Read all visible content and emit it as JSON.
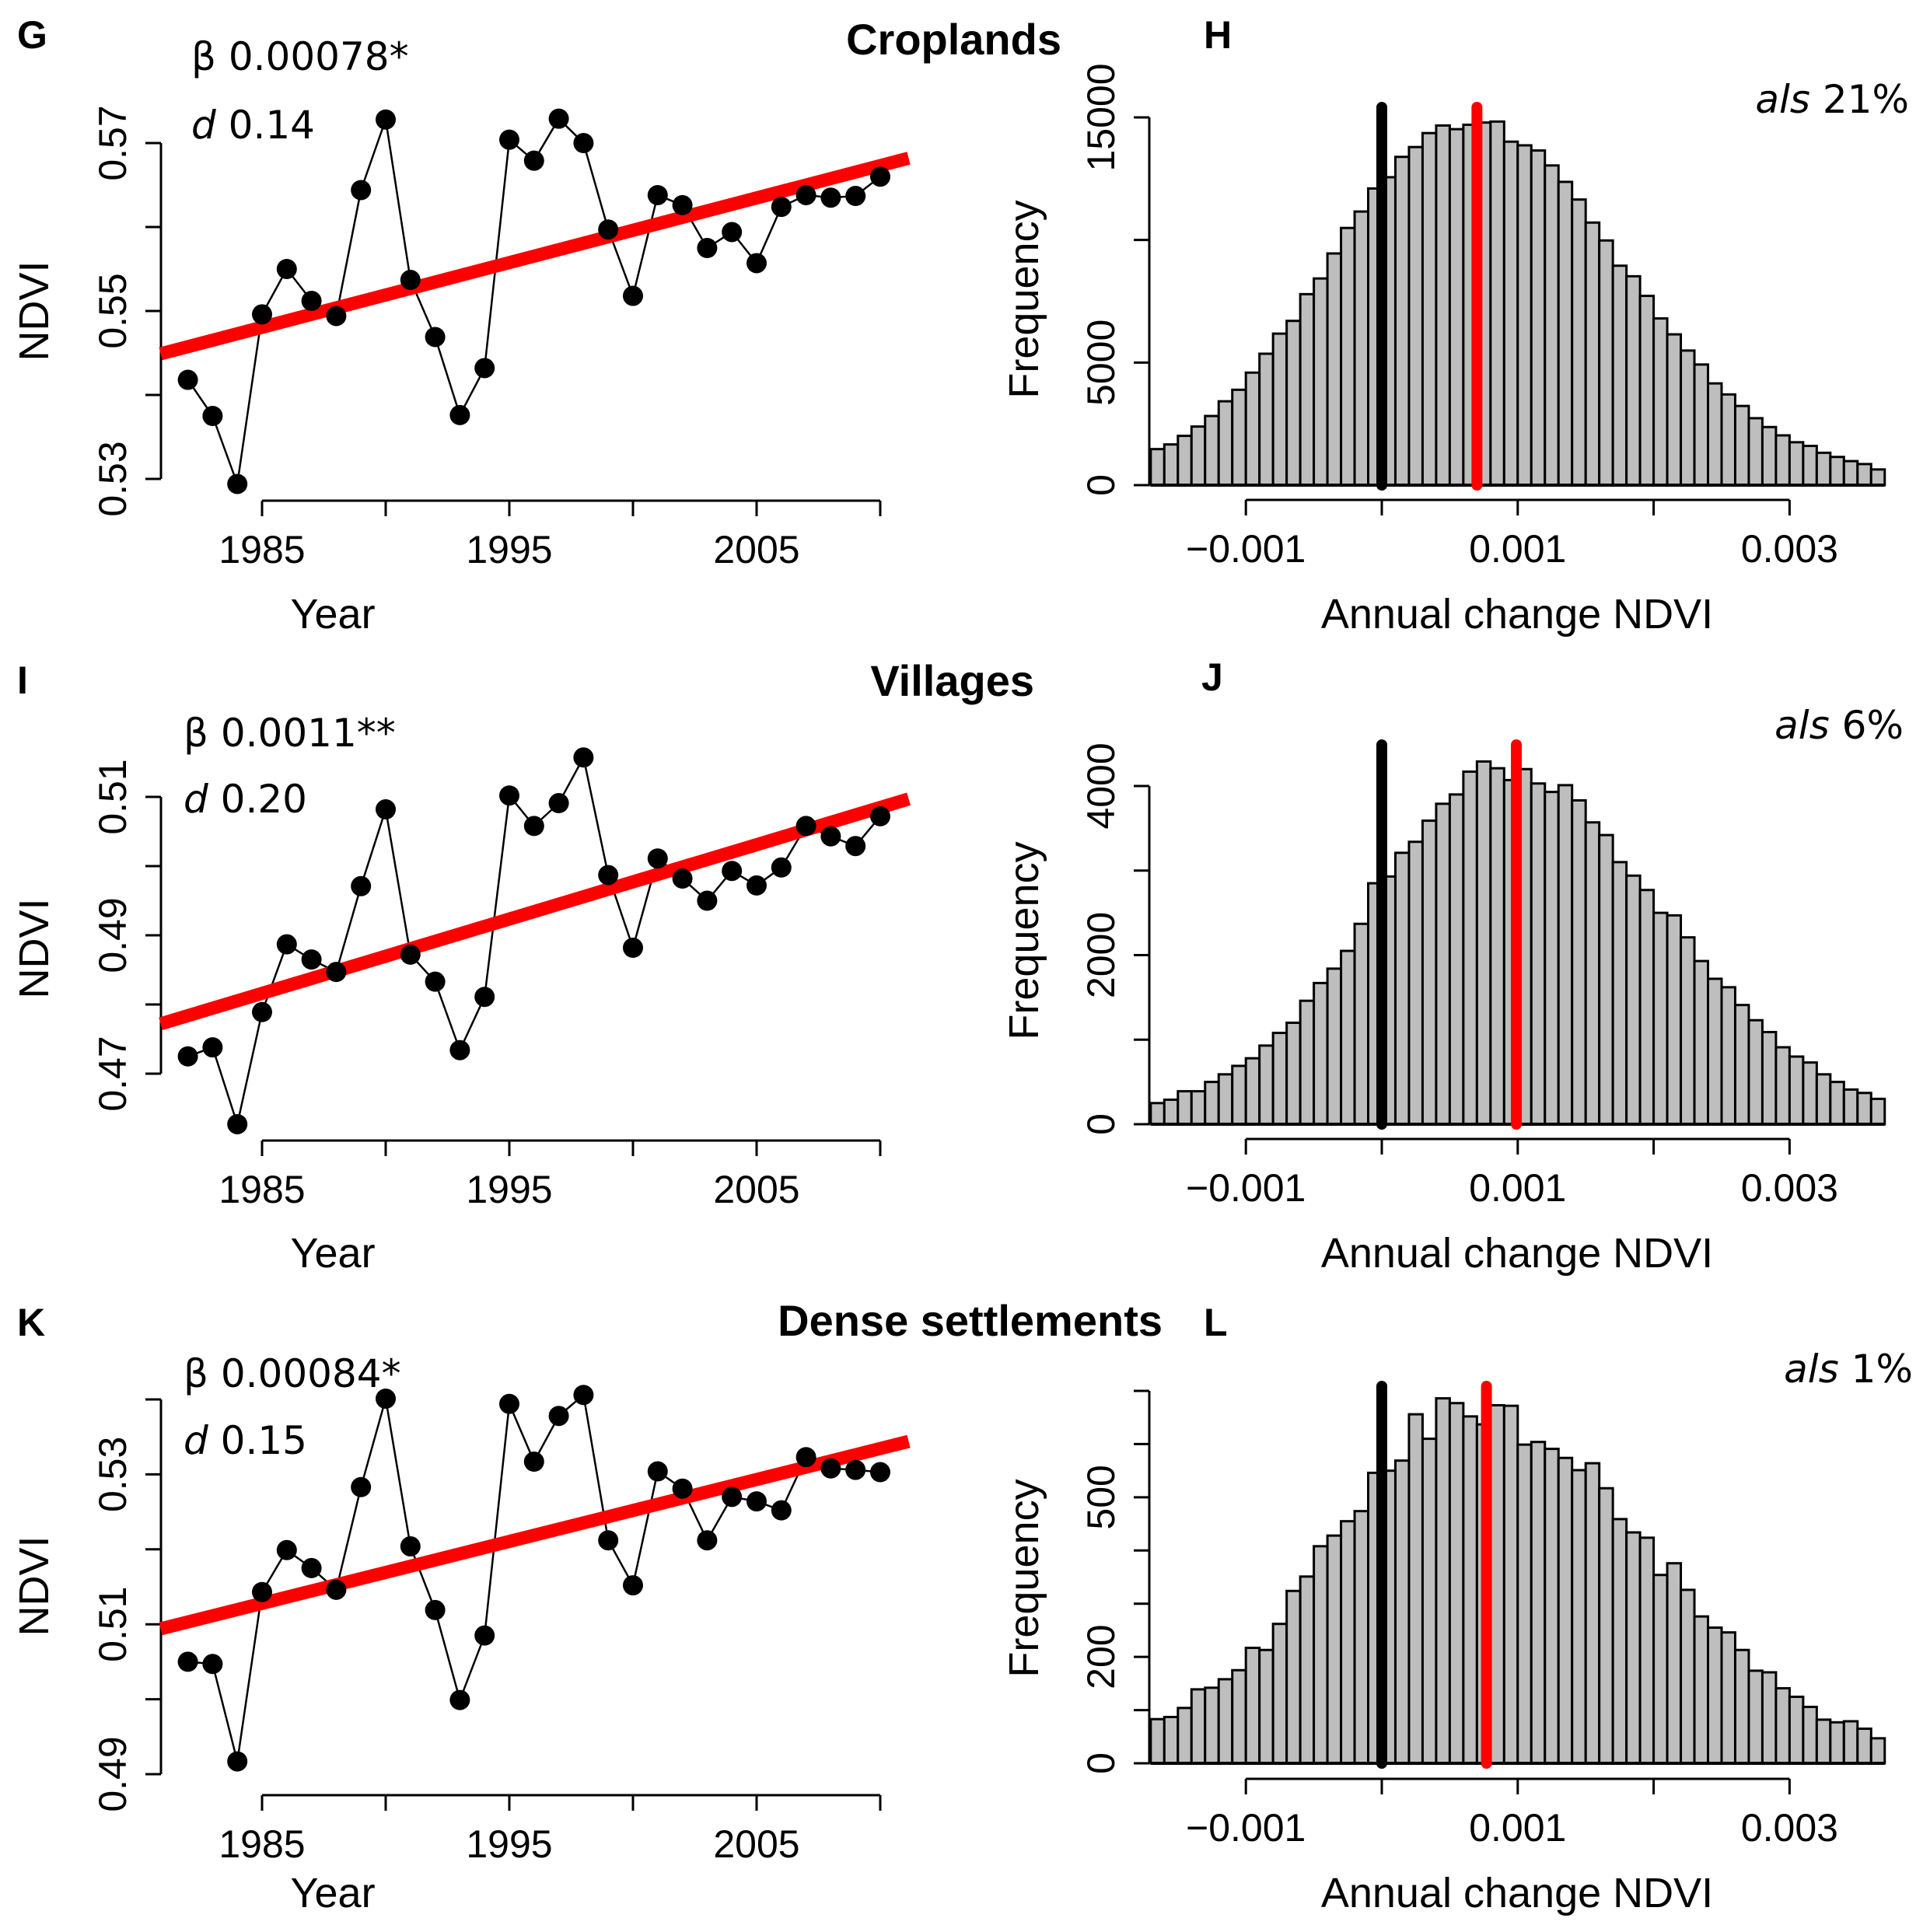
{
  "chart_data": [
    {
      "id": "G",
      "type": "line",
      "panel_label": "G",
      "title": "Croplands",
      "annotation": {
        "beta_symbol": "β",
        "beta": "0.00078*",
        "d_symbol": "d",
        "d": "0.14"
      },
      "xlabel": "Year",
      "ylabel": "NDVI",
      "xticks": [
        1985,
        1990,
        1995,
        2000,
        2005,
        2010
      ],
      "xtick_labels": [
        "1985",
        "1995",
        "2005"
      ],
      "yticks": [
        0.53,
        0.54,
        0.55,
        0.56,
        0.57
      ],
      "ytick_labels": [
        "0.53",
        "0.55",
        "0.57"
      ],
      "ylim": [
        0.53,
        0.57
      ],
      "x": [
        1982,
        1983,
        1984,
        1985,
        1986,
        1987,
        1988,
        1989,
        1990,
        1991,
        1992,
        1993,
        1994,
        1995,
        1996,
        1997,
        1998,
        1999,
        2000,
        2001,
        2002,
        2003,
        2004,
        2005,
        2006,
        2007,
        2008,
        2009,
        2010
      ],
      "y": [
        0.5418,
        0.5375,
        0.5294,
        0.5496,
        0.555,
        0.5512,
        0.5494,
        0.5644,
        0.5728,
        0.5537,
        0.5469,
        0.5376,
        0.5432,
        0.5704,
        0.5679,
        0.5729,
        0.57,
        0.5597,
        0.5518,
        0.5638,
        0.5626,
        0.5575,
        0.5594,
        0.5557,
        0.5624,
        0.5638,
        0.5635,
        0.5637,
        0.566
      ],
      "trend": {
        "color": "#ff0000",
        "x": [
          1980.9,
          2011.15
        ],
        "y": [
          0.5449,
          0.5682
        ]
      }
    },
    {
      "id": "H",
      "type": "bar",
      "subtype": "histogram",
      "panel_label": "H",
      "annotation": {
        "als_label": "als",
        "als_value": "21%"
      },
      "xlabel": "Annual change NDVI",
      "ylabel": "Frequency",
      "xticks": [
        -0.001,
        0,
        0.001,
        0.002,
        0.003
      ],
      "xtick_labels": [
        "−0.001",
        "0.001",
        "0.003"
      ],
      "yticks": [
        0,
        5000,
        10000,
        15000
      ],
      "ytick_labels": [
        "0",
        "5000",
        "15000"
      ],
      "ylim": [
        0,
        15000
      ],
      "bin_start": -0.0017,
      "bin_width": 0.0001,
      "values": [
        1470,
        1660,
        2010,
        2390,
        2820,
        3420,
        3890,
        4590,
        5360,
        6180,
        6700,
        7790,
        8430,
        9450,
        10490,
        11160,
        12100,
        12560,
        13390,
        13790,
        14360,
        14670,
        14520,
        14700,
        14790,
        14830,
        14010,
        13860,
        13650,
        13040,
        12370,
        11650,
        10710,
        9980,
        8950,
        8520,
        7720,
        6800,
        6150,
        5490,
        4920,
        4150,
        3700,
        3230,
        2730,
        2370,
        2030,
        1750,
        1600,
        1320,
        1150,
        980,
        860,
        640
      ],
      "zero_line": {
        "color": "#000000",
        "x": 0
      },
      "observed_line": {
        "color": "#ff0000",
        "x": 0.0007
      },
      "bar_color": "#bebebe"
    },
    {
      "id": "I",
      "type": "line",
      "panel_label": "I",
      "title": "Villages",
      "annotation": {
        "beta_symbol": "β",
        "beta": "0.0011**",
        "d_symbol": "d",
        "d": "0.20"
      },
      "xlabel": "Year",
      "ylabel": "NDVI",
      "xticks": [
        1985,
        1990,
        1995,
        2000,
        2005,
        2010
      ],
      "xtick_labels": [
        "1985",
        "1995",
        "2005"
      ],
      "yticks": [
        0.47,
        0.48,
        0.49,
        0.5,
        0.51
      ],
      "ytick_labels": [
        "0.47",
        "0.49",
        "0.51"
      ],
      "ylim": [
        0.47,
        0.51
      ],
      "x": [
        1982,
        1983,
        1984,
        1985,
        1986,
        1987,
        1988,
        1989,
        1990,
        1991,
        1992,
        1993,
        1994,
        1995,
        1996,
        1997,
        1998,
        1999,
        2000,
        2001,
        2002,
        2003,
        2004,
        2005,
        2006,
        2007,
        2008,
        2009,
        2010
      ],
      "y": [
        0.4725,
        0.4738,
        0.4627,
        0.4789,
        0.4887,
        0.4865,
        0.4847,
        0.4971,
        0.5082,
        0.4872,
        0.4833,
        0.4734,
        0.4811,
        0.5102,
        0.5058,
        0.5091,
        0.5157,
        0.4987,
        0.4882,
        0.5011,
        0.4982,
        0.495,
        0.4993,
        0.4972,
        0.4998,
        0.5058,
        0.5043,
        0.5029,
        0.5072
      ],
      "trend": {
        "color": "#ff0000",
        "x": [
          1980.9,
          2011.15
        ],
        "y": [
          0.4772,
          0.5097
        ]
      }
    },
    {
      "id": "J",
      "type": "bar",
      "subtype": "histogram",
      "panel_label": "J",
      "annotation": {
        "als_label": "als",
        "als_value": "6%"
      },
      "xlabel": "Annual change NDVI",
      "ylabel": "Frequency",
      "xticks": [
        -0.001,
        0,
        0.001,
        0.002,
        0.003
      ],
      "xtick_labels": [
        "−0.001",
        "0.001",
        "0.003"
      ],
      "yticks": [
        0,
        1000,
        2000,
        3000,
        4000
      ],
      "ytick_labels": [
        "0",
        "2000",
        "4000"
      ],
      "ylim": [
        0,
        4000
      ],
      "bin_start": -0.0017,
      "bin_width": 0.0001,
      "values": [
        250,
        290,
        390,
        390,
        500,
        590,
        690,
        780,
        930,
        1080,
        1200,
        1460,
        1670,
        1840,
        2050,
        2370,
        2850,
        2930,
        3210,
        3340,
        3590,
        3790,
        3900,
        4170,
        4290,
        4210,
        4070,
        4200,
        4030,
        3930,
        4010,
        3830,
        3570,
        3420,
        3100,
        2940,
        2770,
        2500,
        2470,
        2210,
        1930,
        1720,
        1620,
        1410,
        1230,
        1090,
        910,
        800,
        730,
        590,
        500,
        410,
        370,
        300
      ],
      "zero_line": {
        "color": "#000000",
        "x": 0
      },
      "observed_line": {
        "color": "#ff0000",
        "x": 0.00099
      },
      "bar_color": "#bebebe"
    },
    {
      "id": "K",
      "type": "line",
      "panel_label": "K",
      "title": "Dense settlements",
      "annotation": {
        "beta_symbol": "β",
        "beta": "0.00084*",
        "d_symbol": "d",
        "d": "0.15"
      },
      "xlabel": "Year",
      "ylabel": "NDVI",
      "xticks": [
        1985,
        1990,
        1995,
        2000,
        2005,
        2010
      ],
      "xtick_labels": [
        "1985",
        "1995",
        "2005"
      ],
      "yticks": [
        0.49,
        0.5,
        0.51,
        0.52,
        0.53,
        0.54
      ],
      "ytick_labels": [
        "0.49",
        "0.51",
        "0.53"
      ],
      "ylim": [
        0.49,
        0.54
      ],
      "x": [
        1982,
        1983,
        1984,
        1985,
        1986,
        1987,
        1988,
        1989,
        1990,
        1991,
        1992,
        1993,
        1994,
        1995,
        1996,
        1997,
        1998,
        1999,
        2000,
        2001,
        2002,
        2003,
        2004,
        2005,
        2006,
        2007,
        2008,
        2009,
        2010
      ],
      "y": [
        0.505,
        0.5047,
        0.4917,
        0.5143,
        0.5199,
        0.5175,
        0.5146,
        0.5283,
        0.5401,
        0.5204,
        0.5119,
        0.4999,
        0.5085,
        0.5394,
        0.5317,
        0.5378,
        0.5406,
        0.5212,
        0.5152,
        0.5304,
        0.5281,
        0.5212,
        0.527,
        0.5264,
        0.5252,
        0.5323,
        0.5308,
        0.5306,
        0.5303
      ],
      "trend": {
        "color": "#ff0000",
        "x": [
          1980.9,
          2011.15
        ],
        "y": [
          0.5094,
          0.5344
        ]
      }
    },
    {
      "id": "L",
      "type": "bar",
      "subtype": "histogram",
      "panel_label": "L",
      "annotation": {
        "als_label": "als",
        "als_value": "1%"
      },
      "xlabel": "Annual change NDVI",
      "ylabel": "Frequency",
      "xticks": [
        -0.001,
        0,
        0.001,
        0.002,
        0.003
      ],
      "xtick_labels": [
        "−0.001",
        "0.001",
        "0.003"
      ],
      "yticks": [
        0,
        100,
        200,
        300,
        400,
        500,
        600,
        700
      ],
      "ytick_labels": [
        "0",
        "200",
        "500"
      ],
      "ylim": [
        0,
        700
      ],
      "bin_start": -0.0017,
      "bin_width": 0.0001,
      "values": [
        83,
        87,
        104,
        139,
        142,
        158,
        175,
        217,
        213,
        262,
        324,
        351,
        408,
        428,
        455,
        474,
        546,
        550,
        569,
        656,
        610,
        686,
        677,
        652,
        637,
        673,
        672,
        599,
        604,
        591,
        574,
        551,
        564,
        517,
        459,
        434,
        424,
        354,
        376,
        326,
        276,
        255,
        246,
        213,
        174,
        171,
        141,
        125,
        106,
        82,
        77,
        79,
        65,
        47
      ],
      "zero_line": {
        "color": "#000000",
        "x": 0
      },
      "observed_line": {
        "color": "#ff0000",
        "x": 0.00077
      },
      "bar_color": "#bebebe"
    }
  ]
}
